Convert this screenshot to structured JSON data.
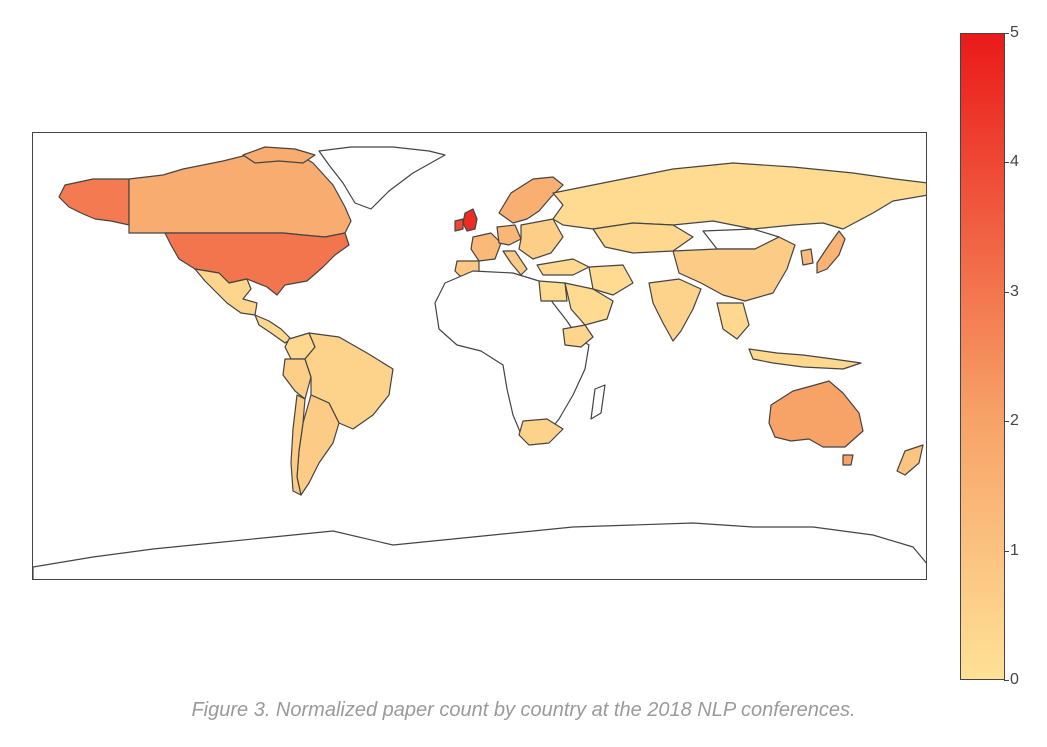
{
  "caption": "Figure 3. Normalized paper count by country at the 2018 NLP conferences.",
  "colorbar": {
    "min": 0,
    "max": 5,
    "ticks": [
      "0",
      "1",
      "2",
      "3",
      "4",
      "5"
    ],
    "color_low": "#ffe196",
    "color_mid": "#f7a368",
    "color_high": "#ea1a1a"
  },
  "map": {
    "type": "choropleth",
    "no_data_color": "#ffffff",
    "border_color": "#444444",
    "values": {
      "united-states": 3.0,
      "united-kingdom": 4.6,
      "ireland": 4.0,
      "canada": 1.7,
      "alaska": 2.9,
      "greenland": null,
      "australia": 2.0,
      "new-zealand": 0.9,
      "mexico": 0.4,
      "brazil": 0.5,
      "argentina": 0.7,
      "chile": 0.7,
      "colombia": 0.3,
      "peru": 0.6,
      "china": 0.7,
      "japan": 1.5,
      "south-korea": 1.2,
      "india": 0.5,
      "russia": 0.2,
      "kazakhstan": 0.3,
      "mongolia": null,
      "germany": 1.4,
      "france": 1.3,
      "spain": 0.8,
      "italy": 0.7,
      "scandinavia": 1.6,
      "eastern-europe": 0.6,
      "turkey": 0.3,
      "iran": 0.2,
      "saudi-arabia": 0.2,
      "egypt": 0.2,
      "ethiopia": 0.4,
      "south-africa": 0.5,
      "southeast-asia": 0.3
    }
  }
}
